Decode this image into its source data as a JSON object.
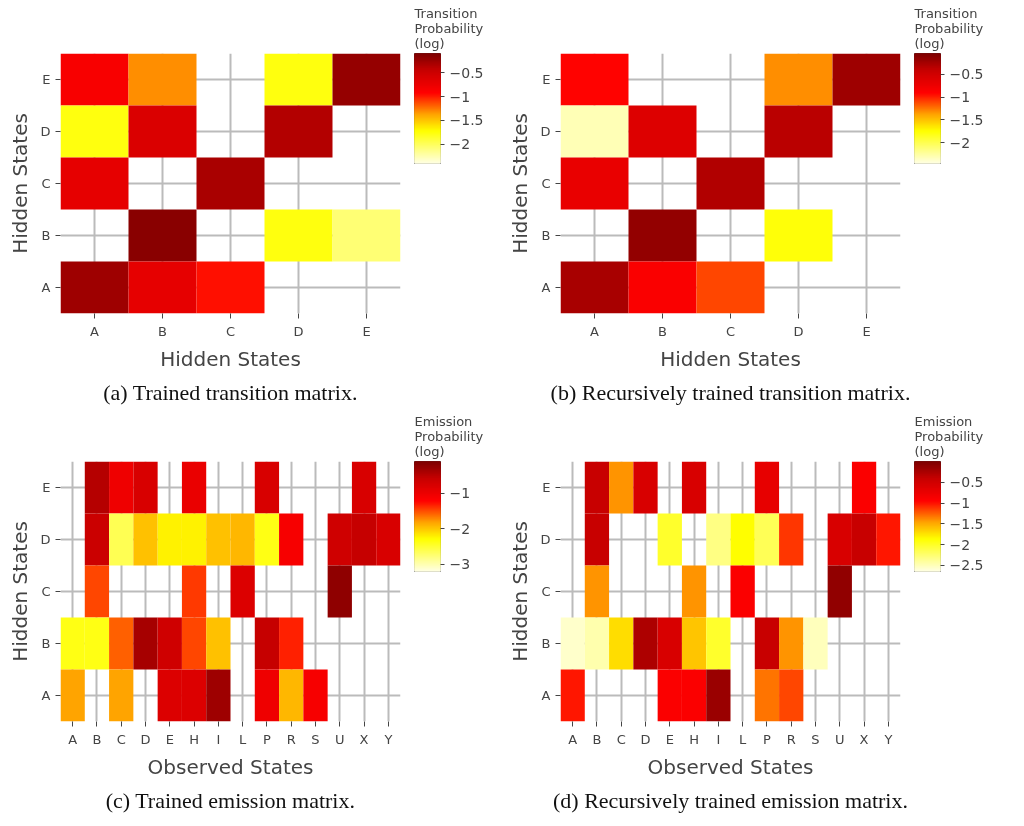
{
  "chart_data": [
    {
      "type": "heatmap",
      "xlabel": "Hidden States",
      "ylabel": "Hidden States",
      "clabel": "Transition Probability (log)",
      "annotations": [
        "(a) Trained transition matrix."
      ],
      "grid": true,
      "categories": [
        "A",
        "B",
        "C",
        "D",
        "E"
      ],
      "y_categories": [
        "E",
        "D",
        "C",
        "B",
        "A"
      ],
      "cells": [
        [
          -0.85,
          -1.3,
          null,
          -1.75,
          -0.2
        ],
        [
          -1.75,
          -0.6,
          null,
          -0.35,
          null
        ],
        [
          -0.7,
          null,
          -0.3,
          null,
          null
        ],
        [
          null,
          -0.15,
          null,
          -1.75,
          -2.05
        ],
        [
          -0.25,
          -0.7,
          -0.95,
          null,
          null
        ]
      ],
      "clim": [
        -2.4,
        -0.1
      ],
      "cticks": [
        {
          "value": -0.5,
          "label": "−0.5"
        },
        {
          "value": -1,
          "label": "−1"
        },
        {
          "value": -1.5,
          "label": "−1.5"
        },
        {
          "value": -2,
          "label": "−2"
        }
      ]
    },
    {
      "type": "heatmap",
      "xlabel": "Hidden States",
      "ylabel": "Hidden States",
      "clabel": "Transition Probability (log)",
      "annotations": [
        "(b) Recursively trained transition matrix."
      ],
      "grid": true,
      "categories": [
        "A",
        "B",
        "C",
        "D",
        "E"
      ],
      "y_categories": [
        "E",
        "D",
        "C",
        "B",
        "A"
      ],
      "cells": [
        [
          -0.9,
          null,
          null,
          -1.3,
          -0.2
        ],
        [
          -2.3,
          -0.6,
          null,
          -0.35,
          null
        ],
        [
          -0.7,
          null,
          -0.3,
          null,
          null
        ],
        [
          null,
          -0.15,
          null,
          -1.75,
          null
        ],
        [
          -0.25,
          -0.85,
          -1.1,
          null,
          null
        ]
      ],
      "clim": [
        -2.45,
        -0.05
      ],
      "cticks": [
        {
          "value": -0.5,
          "label": "−0.5"
        },
        {
          "value": -1,
          "label": "−1"
        },
        {
          "value": -1.5,
          "label": "−1.5"
        },
        {
          "value": -2,
          "label": "−2"
        }
      ]
    },
    {
      "type": "heatmap",
      "xlabel": "Observed States",
      "ylabel": "Hidden States",
      "clabel": "Emission Probability (log)",
      "annotations": [
        "(c) Trained emission matrix."
      ],
      "grid": true,
      "categories": [
        "A",
        "B",
        "C",
        "D",
        "E",
        "H",
        "I",
        "L",
        "P",
        "R",
        "S",
        "U",
        "X",
        "Y"
      ],
      "y_categories": [
        "E",
        "D",
        "C",
        "B",
        "A"
      ],
      "cells": [
        [
          null,
          -0.45,
          -1.0,
          -0.75,
          null,
          -0.95,
          null,
          null,
          -0.75,
          null,
          null,
          null,
          -0.75,
          null
        ],
        [
          null,
          -0.6,
          -2.6,
          -1.95,
          -2.2,
          -2.2,
          -1.95,
          -1.9,
          -2.35,
          -1.1,
          null,
          -0.65,
          -0.55,
          -0.75
        ],
        [
          null,
          -1.45,
          null,
          null,
          null,
          -1.4,
          null,
          -0.8,
          null,
          null,
          null,
          -0.2,
          null,
          null
        ],
        [
          -2.35,
          -2.35,
          -1.55,
          -0.35,
          -0.65,
          -1.45,
          -1.95,
          null,
          -0.55,
          -1.3,
          null,
          null,
          null,
          null
        ],
        [
          -1.8,
          null,
          -1.8,
          null,
          -0.8,
          -0.8,
          -0.3,
          null,
          -1.0,
          -1.9,
          -1.1,
          null,
          null,
          null
        ]
      ],
      "clim": [
        -3.2,
        -0.1
      ],
      "cticks": [
        {
          "value": -1,
          "label": "−1"
        },
        {
          "value": -2,
          "label": "−2"
        },
        {
          "value": -3,
          "label": "−3"
        }
      ]
    },
    {
      "type": "heatmap",
      "xlabel": "Observed States",
      "ylabel": "Hidden States",
      "clabel": "Emission Probability (log)",
      "annotations": [
        "(d) Recursively trained emission matrix."
      ],
      "grid": true,
      "categories": [
        "A",
        "B",
        "C",
        "D",
        "E",
        "H",
        "I",
        "L",
        "P",
        "R",
        "S",
        "U",
        "X",
        "Y"
      ],
      "y_categories": [
        "E",
        "D",
        "C",
        "B",
        "A"
      ],
      "cells": [
        [
          null,
          -0.4,
          -1.4,
          -0.55,
          null,
          -0.55,
          null,
          null,
          -0.7,
          null,
          null,
          null,
          -0.9,
          null
        ],
        [
          null,
          -0.4,
          null,
          null,
          -2.0,
          null,
          -2.3,
          -1.85,
          -2.15,
          -1.1,
          null,
          -0.55,
          -0.4,
          -1.0
        ],
        [
          null,
          -1.4,
          null,
          null,
          null,
          -1.4,
          null,
          -0.9,
          null,
          null,
          null,
          -0.1,
          null,
          null
        ],
        [
          -2.55,
          -2.45,
          -1.7,
          -0.25,
          -0.55,
          -1.6,
          -2.0,
          null,
          -0.4,
          -1.4,
          -2.5,
          null,
          null,
          null
        ],
        [
          -1.0,
          null,
          null,
          null,
          -0.9,
          -0.9,
          -0.15,
          null,
          -1.3,
          -1.15,
          null,
          null,
          null,
          null
        ]
      ],
      "clim": [
        -2.65,
        0
      ],
      "cticks": [
        {
          "value": -0.5,
          "label": "−0.5"
        },
        {
          "value": -1,
          "label": "−1"
        },
        {
          "value": -1.5,
          "label": "−1.5"
        },
        {
          "value": -2,
          "label": "−2"
        },
        {
          "value": -2.5,
          "label": "−2.5"
        }
      ]
    }
  ]
}
